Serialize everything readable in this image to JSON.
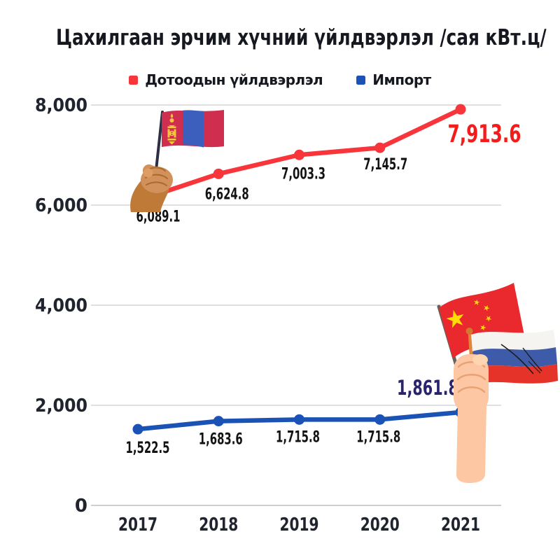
{
  "title": "Цахилгаан эрчим хүчний үйлдвэрлэл /сая кВт.ц/",
  "legend": [
    {
      "label": "Дотоодын үйлдвэрлэл",
      "color": "#f8353b"
    },
    {
      "label": "Импорт",
      "color": "#1a53b5"
    }
  ],
  "chart_data": {
    "type": "line",
    "title": "Цахилгаан эрчим хүчний үйлдвэрлэл /сая кВт.ц/",
    "categories": [
      "2017",
      "2018",
      "2019",
      "2020",
      "2021"
    ],
    "ylim": [
      0,
      8000
    ],
    "yticks": [
      0,
      2000,
      4000,
      6000,
      8000
    ],
    "ytick_labels": [
      "0",
      "2,000",
      "4,000",
      "6,000",
      "8,000"
    ],
    "grid": true,
    "legend_position": "top",
    "series": [
      {
        "name": "Дотоодын үйлдвэрлэл",
        "color": "#f8353b",
        "values": [
          6089.1,
          6624.8,
          7003.3,
          7145.7,
          7913.6
        ],
        "labels": [
          "6,089.1",
          "6,624.8",
          "7,003.3",
          "7,145.7",
          "7,913.6"
        ],
        "label_color": "#131313",
        "emphasis_color": "#f41b1b"
      },
      {
        "name": "Импорт",
        "color": "#1a53b5",
        "values": [
          1522.5,
          1683.6,
          1715.8,
          1715.8,
          1861.8
        ],
        "labels": [
          "1,522.5",
          "1,683.6",
          "1,715.8",
          "1,715.8",
          "1,861.8"
        ],
        "label_color": "#131313",
        "emphasis_color": "#2a2470"
      }
    ],
    "annotations": [
      "mongolia-flag-in-hand",
      "china-and-russia-flags-in-hand"
    ]
  }
}
